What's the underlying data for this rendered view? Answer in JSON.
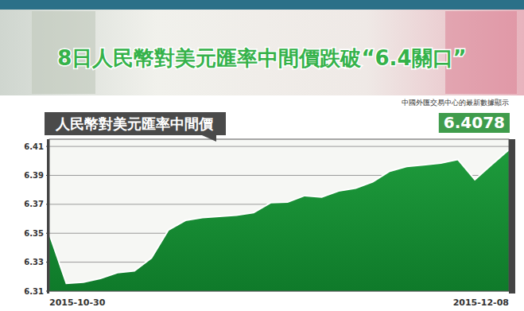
{
  "chart_data": {
    "type": "area",
    "title": "8日人民幣對美元匯率中間價跌破“6.4關口”",
    "subtitle": "中國外匯交易中心的最新數據顯示",
    "annotations": [
      "6.4078"
    ],
    "categories": [
      "2015-10-30",
      null,
      null,
      null,
      null,
      null,
      null,
      null,
      null,
      null,
      null,
      null,
      null,
      null,
      null,
      null,
      null,
      null,
      null,
      null,
      null,
      null,
      null,
      null,
      null,
      null,
      null,
      "2015-12-08"
    ],
    "series": [
      {
        "name": "人民幣對美元匯率中間價",
        "color": "#1e9b3c",
        "values": [
          6.3495,
          6.3154,
          6.3162,
          6.3188,
          6.3228,
          6.324,
          6.3329,
          6.3523,
          6.3589,
          6.3609,
          6.3617,
          6.3625,
          6.3642,
          6.3711,
          6.3715,
          6.376,
          6.375,
          6.3792,
          6.3812,
          6.3856,
          6.3929,
          6.3962,
          6.3973,
          6.3985,
          6.401,
          6.3871,
          6.3975,
          6.4078
        ]
      }
    ],
    "ylim": [
      6.31,
      6.415
    ],
    "yticks": [
      6.31,
      6.33,
      6.35,
      6.37,
      6.39,
      6.41
    ],
    "grid": true
  }
}
